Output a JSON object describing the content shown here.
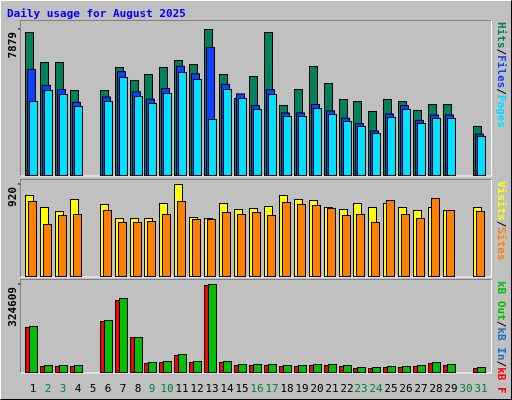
{
  "chart_data": [
    {
      "type": "bar",
      "title": "Daily usage for August 2025",
      "ylim": [
        0,
        7879
      ],
      "yticks": [
        7879
      ],
      "separator": "/",
      "legend_reverse": false,
      "series": [
        {
          "name": "Hits",
          "color": "#00805c",
          "values": [
            7718,
            6099,
            6099,
            4587,
            0,
            4587,
            5829,
            5127,
            5451,
            5829,
            6206,
            5990,
            7879,
            5451,
            4156,
            5343,
            7718,
            3778,
            4641,
            5883,
            4965,
            4102,
            3994,
            3454,
            4102,
            3994,
            3508,
            3832,
            3832,
            0,
            2645
          ]
        },
        {
          "name": "Files",
          "color": "#1040ff",
          "values": [
            5721,
            4862,
            4633,
            3947,
            0,
            4234,
            5606,
            4520,
            4119,
            4691,
            5893,
            5492,
            6908,
            4919,
            4405,
            3776,
            4633,
            3375,
            3375,
            3833,
            3490,
            3089,
            2804,
            2403,
            3318,
            3776,
            2974,
            3261,
            3261,
            0,
            2231
          ]
        },
        {
          "name": "Pages",
          "color": "#00e0ff",
          "values": [
            3994,
            4587,
            4371,
            3724,
            0,
            3994,
            5289,
            4264,
            3886,
            4425,
            5559,
            5181,
            3022,
            4641,
            4156,
            3562,
            4371,
            3184,
            3184,
            3616,
            3292,
            2914,
            2645,
            2267,
            3130,
            3562,
            2806,
            3076,
            3076,
            0,
            2105
          ]
        }
      ]
    },
    {
      "type": "bar",
      "ylim": [
        0,
        920
      ],
      "yticks": [
        920
      ],
      "separator": "/",
      "legend_reverse": false,
      "series": [
        {
          "name": "Visits",
          "color": "#ffff00",
          "values": [
            810,
            690,
            650,
            770,
            0,
            720,
            580,
            580,
            580,
            730,
            920,
            590,
            580,
            730,
            670,
            680,
            700,
            810,
            770,
            760,
            690,
            670,
            730,
            690,
            730,
            690,
            660,
            690,
            660,
            0,
            690
          ]
        },
        {
          "name": "Sites",
          "color": "#ff8000",
          "values": [
            750,
            520,
            610,
            620,
            0,
            660,
            540,
            540,
            550,
            620,
            750,
            570,
            570,
            640,
            620,
            640,
            610,
            740,
            720,
            710,
            680,
            610,
            620,
            540,
            760,
            620,
            580,
            780,
            660,
            0,
            650
          ]
        }
      ]
    },
    {
      "type": "bar",
      "ylim": [
        0,
        324609
      ],
      "yticks": [
        324609
      ],
      "separator": "/",
      "legend_reverse": true,
      "categories": [
        "1",
        "2",
        "3",
        "4",
        "5",
        "6",
        "7",
        "8",
        "9",
        "10",
        "11",
        "12",
        "13",
        "14",
        "15",
        "16",
        "17",
        "18",
        "19",
        "20",
        "21",
        "22",
        "23",
        "24",
        "25",
        "26",
        "27",
        "28",
        "29",
        "30",
        "31"
      ],
      "category_colors": [
        "#000000",
        "#008040",
        "#008040",
        "#000000",
        "#000000",
        "#000000",
        "#000000",
        "#000000",
        "#008040",
        "#008040",
        "#000000",
        "#000000",
        "#000000",
        "#000000",
        "#000000",
        "#008040",
        "#008040",
        "#000000",
        "#000000",
        "#000000",
        "#000000",
        "#000000",
        "#008040",
        "#008040",
        "#000000",
        "#000000",
        "#000000",
        "#000000",
        "#000000",
        "#008040",
        "#008040"
      ],
      "series": [
        {
          "name": "kB F",
          "color": "#ff0000",
          "values": [
            166005,
            22134,
            22134,
            22134,
            0,
            188139,
            265608,
            129115,
            33201,
            36890,
            62713,
            36890,
            320920,
            36890,
            25823,
            25823,
            25823,
            22134,
            22134,
            25823,
            25823,
            22134,
            14756,
            14756,
            18445,
            18445,
            22134,
            33201,
            25823,
            0,
            14756
          ]
        },
        {
          "name": "kB In",
          "color": "#2070d0",
          "values": [
            0,
            0,
            0,
            0,
            0,
            0,
            0,
            0,
            0,
            0,
            0,
            0,
            0,
            0,
            0,
            0,
            0,
            0,
            0,
            0,
            0,
            0,
            0,
            0,
            0,
            0,
            0,
            0,
            0,
            0,
            0
          ]
        },
        {
          "name": "kB Out",
          "color": "#00c000",
          "values": [
            169694,
            25823,
            25823,
            25823,
            0,
            191828,
            272986,
            129115,
            36890,
            40579,
            66402,
            40579,
            324609,
            40579,
            29512,
            29512,
            29512,
            25823,
            25823,
            29512,
            29512,
            25823,
            18445,
            18445,
            22134,
            22134,
            25823,
            36890,
            29512,
            0,
            18445
          ]
        }
      ]
    }
  ]
}
